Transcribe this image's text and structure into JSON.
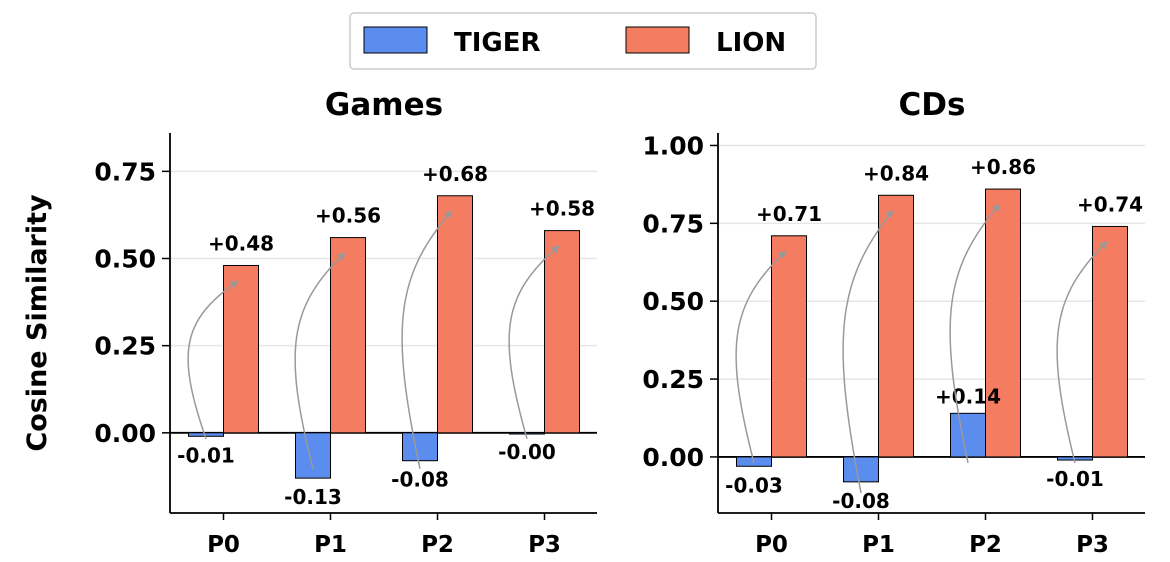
{
  "legend": {
    "items": [
      {
        "label": "TIGER",
        "color": "#5b8def"
      },
      {
        "label": "LION",
        "color": "#f47c60"
      }
    ]
  },
  "ylabel": "Cosine Similarity",
  "chart_data": [
    {
      "type": "bar",
      "title": "Games",
      "ylabel": "Cosine Similarity",
      "categories": [
        "P0",
        "P1",
        "P2",
        "P3"
      ],
      "series": [
        {
          "name": "TIGER",
          "values": [
            -0.01,
            -0.13,
            -0.08,
            -0.0
          ]
        },
        {
          "name": "LION",
          "values": [
            0.48,
            0.56,
            0.68,
            0.58
          ]
        }
      ],
      "labels": {
        "TIGER": [
          "-0.01",
          "-0.13",
          "-0.08",
          "-0.00"
        ],
        "LION": [
          "+0.48",
          "+0.56",
          "+0.68",
          "+0.58"
        ]
      },
      "ylim": [
        -0.23,
        0.86
      ],
      "yticks": [
        0.0,
        0.25,
        0.5,
        0.75
      ],
      "ytick_labels": [
        "0.00",
        "0.25",
        "0.50",
        "0.75"
      ],
      "grid": "y",
      "arrows": "curved arrow from each TIGER bar to the paired LION bar"
    },
    {
      "type": "bar",
      "title": "CDs",
      "categories": [
        "P0",
        "P1",
        "P2",
        "P3"
      ],
      "series": [
        {
          "name": "TIGER",
          "values": [
            -0.03,
            -0.08,
            0.14,
            -0.01
          ]
        },
        {
          "name": "LION",
          "values": [
            0.71,
            0.84,
            0.86,
            0.74
          ]
        }
      ],
      "labels": {
        "TIGER": [
          "-0.03",
          "-0.08",
          "+0.14",
          "-0.01"
        ],
        "LION": [
          "+0.71",
          "+0.84",
          "+0.86",
          "+0.74"
        ]
      },
      "ylim": [
        -0.18,
        1.04
      ],
      "yticks": [
        0.0,
        0.25,
        0.5,
        0.75,
        1.0
      ],
      "ytick_labels": [
        "0.00",
        "0.25",
        "0.50",
        "0.75",
        "1.00"
      ],
      "grid": "y",
      "arrows": "curved arrow from each TIGER bar to the paired LION bar"
    }
  ]
}
